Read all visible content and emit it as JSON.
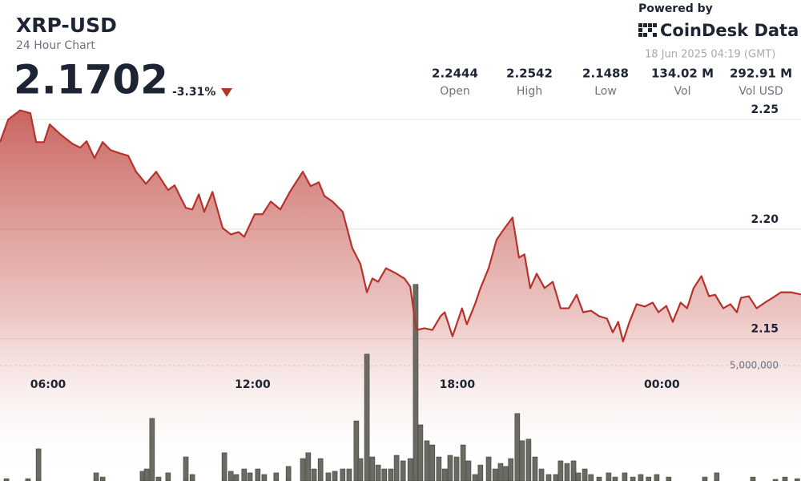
{
  "header": {
    "symbol": "XRP-USD",
    "subtitle": "24 Hour Chart",
    "price": "2.1702",
    "change": "-3.31%",
    "powered_by": "Powered by",
    "brand": "CoinDesk Data",
    "timestamp": "18 Jun 2025 04:19 (GMT)"
  },
  "stats": [
    {
      "value": "2.2444",
      "label": "Open"
    },
    {
      "value": "2.2542",
      "label": "High"
    },
    {
      "value": "2.1488",
      "label": "Low"
    },
    {
      "value": "134.02 M",
      "label": "Vol"
    },
    {
      "value": "292.91 M",
      "label": "Vol USD"
    }
  ],
  "chart_data": {
    "type": "line",
    "xlim": [
      4.59,
      28.08
    ],
    "xticks": [
      {
        "value": 6,
        "label": "06:00"
      },
      {
        "value": 12,
        "label": "12:00"
      },
      {
        "value": 18,
        "label": "18:00"
      },
      {
        "value": 24,
        "label": "00:00"
      }
    ],
    "ylim": [
      2.144,
      2.257
    ],
    "yticks": [
      2.15,
      {
        "value": 2.2,
        "label": "2.20"
      },
      2.25
    ],
    "y2lim": [
      0,
      8500000
    ],
    "y2ticks": [
      {
        "value": 5000000,
        "label": "5,000,000"
      }
    ],
    "grid": true,
    "series": [
      {
        "type": "line",
        "color": "#b7322b",
        "x": [
          4.59,
          4.83,
          5.18,
          5.48,
          5.65,
          5.88,
          6.05,
          6.35,
          6.71,
          6.94,
          7.13,
          7.36,
          7.6,
          7.83,
          8.11,
          8.35,
          8.58,
          8.87,
          9.17,
          9.52,
          9.71,
          10.04,
          10.23,
          10.42,
          10.58,
          10.82,
          11.12,
          11.36,
          11.59,
          11.75,
          12.06,
          12.29,
          12.53,
          12.81,
          13.09,
          13.47,
          13.7,
          13.94,
          14.1,
          14.34,
          14.64,
          14.92,
          15.16,
          15.35,
          15.51,
          15.68,
          15.91,
          16.22,
          16.45,
          16.62,
          16.8,
          17.04,
          17.27,
          17.51,
          17.63,
          17.86,
          18.14,
          18.28,
          18.52,
          18.68,
          18.92,
          19.15,
          19.39,
          19.62,
          19.81,
          19.97,
          20.14,
          20.33,
          20.56,
          20.8,
          21.03,
          21.27,
          21.5,
          21.69,
          21.92,
          22.16,
          22.39,
          22.56,
          22.72,
          22.86,
          23.05,
          23.26,
          23.5,
          23.73,
          23.9,
          24.13,
          24.32,
          24.55,
          24.74,
          24.93,
          25.16,
          25.38,
          25.56,
          25.8,
          26.01,
          26.2,
          26.32,
          26.55,
          26.78,
          27.02,
          27.25,
          27.49,
          27.79,
          28.08
        ],
        "values": [
          2.2397,
          2.25,
          2.2542,
          2.2529,
          2.2397,
          2.2397,
          2.2478,
          2.2434,
          2.239,
          2.2372,
          2.2401,
          2.2324,
          2.2397,
          2.2361,
          2.2346,
          2.2335,
          2.2262,
          2.2207,
          2.2262,
          2.2178,
          2.22,
          2.2097,
          2.209,
          2.2159,
          2.2079,
          2.217,
          2.2005,
          2.1976,
          2.1987,
          2.1965,
          2.2068,
          2.2068,
          2.2126,
          2.209,
          2.217,
          2.2262,
          2.2196,
          2.2214,
          2.2152,
          2.2126,
          2.2079,
          2.1914,
          2.1841,
          2.1712,
          2.1775,
          2.176,
          2.1822,
          2.1797,
          2.1775,
          2.1738,
          2.154,
          2.1548,
          2.154,
          2.1603,
          2.1621,
          2.1511,
          2.1639,
          2.1566,
          2.1658,
          2.1731,
          2.1822,
          2.1951,
          2.2005,
          2.2053,
          2.187,
          2.1885,
          2.1731,
          2.1797,
          2.1731,
          2.176,
          2.1639,
          2.1639,
          2.1701,
          2.1621,
          2.1628,
          2.1603,
          2.1592,
          2.1529,
          2.1577,
          2.1488,
          2.1577,
          2.1658,
          2.1647,
          2.1665,
          2.1621,
          2.165,
          2.1577,
          2.1665,
          2.1639,
          2.1731,
          2.1786,
          2.1694,
          2.1701,
          2.1639,
          2.1658,
          2.1621,
          2.1687,
          2.1694,
          2.1639,
          2.1665,
          2.1687,
          2.1712,
          2.1712,
          2.1702
        ]
      },
      {
        "type": "bar",
        "axis": "y2",
        "color": "#6b6b63",
        "x": [
          4.78,
          5.41,
          5.72,
          7.41,
          7.6,
          8.77,
          8.89,
          9.05,
          9.24,
          9.52,
          10.04,
          10.23,
          11.17,
          11.36,
          11.52,
          11.75,
          11.92,
          12.15,
          12.34,
          12.69,
          13.05,
          13.47,
          13.63,
          13.8,
          13.99,
          14.22,
          14.41,
          14.64,
          14.83,
          15.04,
          15.16,
          15.35,
          15.51,
          15.68,
          15.86,
          16.05,
          16.22,
          16.41,
          16.62,
          16.78,
          16.92,
          17.11,
          17.27,
          17.46,
          17.63,
          17.79,
          17.98,
          18.17,
          18.33,
          18.52,
          18.68,
          18.92,
          19.11,
          19.27,
          19.43,
          19.57,
          19.76,
          19.9,
          20.09,
          20.28,
          20.47,
          20.68,
          20.89,
          21.03,
          21.22,
          21.41,
          21.55,
          21.74,
          21.92,
          22.16,
          22.44,
          22.63,
          22.91,
          23.15,
          23.38,
          23.61,
          23.85,
          24.2,
          25.26,
          25.61,
          26.67,
          27.33,
          27.61,
          27.97
        ],
        "values": [
          100000,
          100000,
          1390000,
          350000,
          170000,
          420000,
          520000,
          2710000,
          170000,
          350000,
          1040000,
          280000,
          1220000,
          420000,
          280000,
          520000,
          350000,
          520000,
          280000,
          350000,
          630000,
          970000,
          1220000,
          520000,
          970000,
          350000,
          420000,
          520000,
          520000,
          2600000,
          970000,
          5490000,
          1040000,
          690000,
          520000,
          520000,
          1110000,
          870000,
          970000,
          8510000,
          2430000,
          1740000,
          1560000,
          1040000,
          520000,
          1110000,
          1040000,
          1560000,
          870000,
          280000,
          690000,
          1040000,
          520000,
          760000,
          630000,
          970000,
          2920000,
          1740000,
          1810000,
          1040000,
          520000,
          280000,
          280000,
          870000,
          760000,
          870000,
          350000,
          520000,
          280000,
          170000,
          350000,
          170000,
          350000,
          170000,
          280000,
          170000,
          280000,
          170000,
          170000,
          350000,
          170000,
          70000,
          170000,
          100000
        ]
      }
    ]
  }
}
